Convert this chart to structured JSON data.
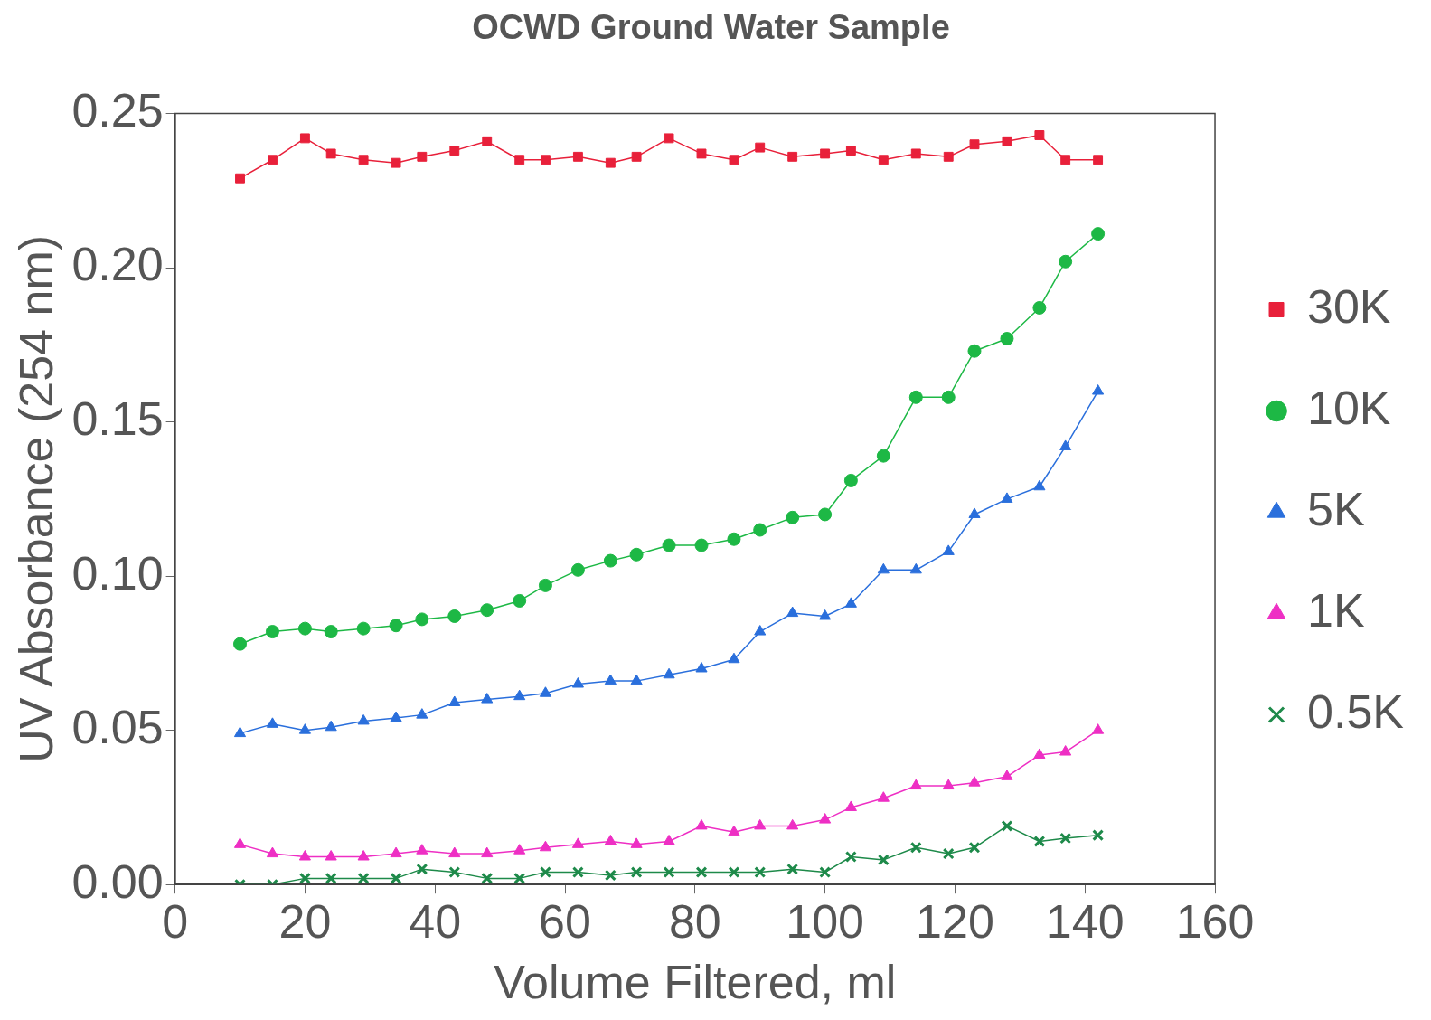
{
  "chart_data": {
    "type": "line",
    "title": "OCWD Ground Water Sample",
    "xlabel": "Volume Filtered, ml",
    "ylabel": "UV Absorbance (254 nm)",
    "x": [
      10,
      15,
      20,
      24,
      29,
      34,
      38,
      43,
      48,
      53,
      57,
      62,
      67,
      71,
      76,
      81,
      86,
      90,
      95,
      100,
      104,
      109,
      114,
      119,
      123,
      128,
      133,
      137,
      142
    ],
    "xlim": [
      0,
      160
    ],
    "xticks": [
      0,
      20,
      40,
      60,
      80,
      100,
      120,
      140,
      160
    ],
    "ylim": [
      0,
      0.25
    ],
    "yticks": [
      {
        "value": 0,
        "label": "0.00"
      },
      {
        "value": 0.05,
        "label": "0.05"
      },
      {
        "value": 0.1,
        "label": "0.10"
      },
      {
        "value": 0.15,
        "label": "0.15"
      },
      {
        "value": 0.2,
        "label": "0.20"
      },
      {
        "value": 0.25,
        "label": "0.25"
      }
    ],
    "grid": false,
    "legend": "right",
    "series": [
      {
        "name": "30K",
        "color": "#e8203a",
        "marker": "square",
        "values": [
          0.229,
          0.235,
          0.242,
          0.237,
          0.235,
          0.234,
          0.236,
          0.238,
          0.241,
          0.235,
          0.235,
          0.236,
          0.234,
          0.236,
          0.242,
          0.237,
          0.235,
          0.239,
          0.236,
          0.237,
          0.238,
          0.235,
          0.237,
          0.236,
          0.24,
          0.241,
          0.243,
          0.235,
          0.235
        ]
      },
      {
        "name": "10K",
        "color": "#1db845",
        "marker": "circle",
        "values": [
          0.078,
          0.082,
          0.083,
          0.082,
          0.083,
          0.084,
          0.086,
          0.087,
          0.089,
          0.092,
          0.097,
          0.102,
          0.105,
          0.107,
          0.11,
          0.11,
          0.112,
          0.115,
          0.119,
          0.12,
          0.131,
          0.139,
          0.158,
          0.158,
          0.173,
          0.177,
          0.187,
          0.202,
          0.211
        ]
      },
      {
        "name": "5K",
        "color": "#2a6fdc",
        "marker": "triangle",
        "values": [
          0.049,
          0.052,
          0.05,
          0.051,
          0.053,
          0.054,
          0.055,
          0.059,
          0.06,
          0.061,
          0.062,
          0.065,
          0.066,
          0.066,
          0.068,
          0.07,
          0.073,
          0.082,
          0.088,
          0.087,
          0.091,
          0.102,
          0.102,
          0.108,
          0.12,
          0.125,
          0.129,
          0.142,
          0.16
        ]
      },
      {
        "name": "1K",
        "color": "#ee2fc4",
        "marker": "triangle",
        "values": [
          0.013,
          0.01,
          0.009,
          0.009,
          0.009,
          0.01,
          0.011,
          0.01,
          0.01,
          0.011,
          0.012,
          0.013,
          0.014,
          0.013,
          0.014,
          0.019,
          0.017,
          0.019,
          0.019,
          0.021,
          0.025,
          0.028,
          0.032,
          0.032,
          0.033,
          0.035,
          0.042,
          0.043,
          0.05
        ]
      },
      {
        "name": "0.5K",
        "color": "#1e8a4a",
        "marker": "cross",
        "values": [
          0.0,
          0.0,
          0.002,
          0.002,
          0.002,
          0.002,
          0.005,
          0.004,
          0.002,
          0.002,
          0.004,
          0.004,
          0.003,
          0.004,
          0.004,
          0.004,
          0.004,
          0.004,
          0.005,
          0.004,
          0.009,
          0.008,
          0.012,
          0.01,
          0.012,
          0.019,
          0.014,
          0.015,
          0.016
        ]
      }
    ]
  }
}
